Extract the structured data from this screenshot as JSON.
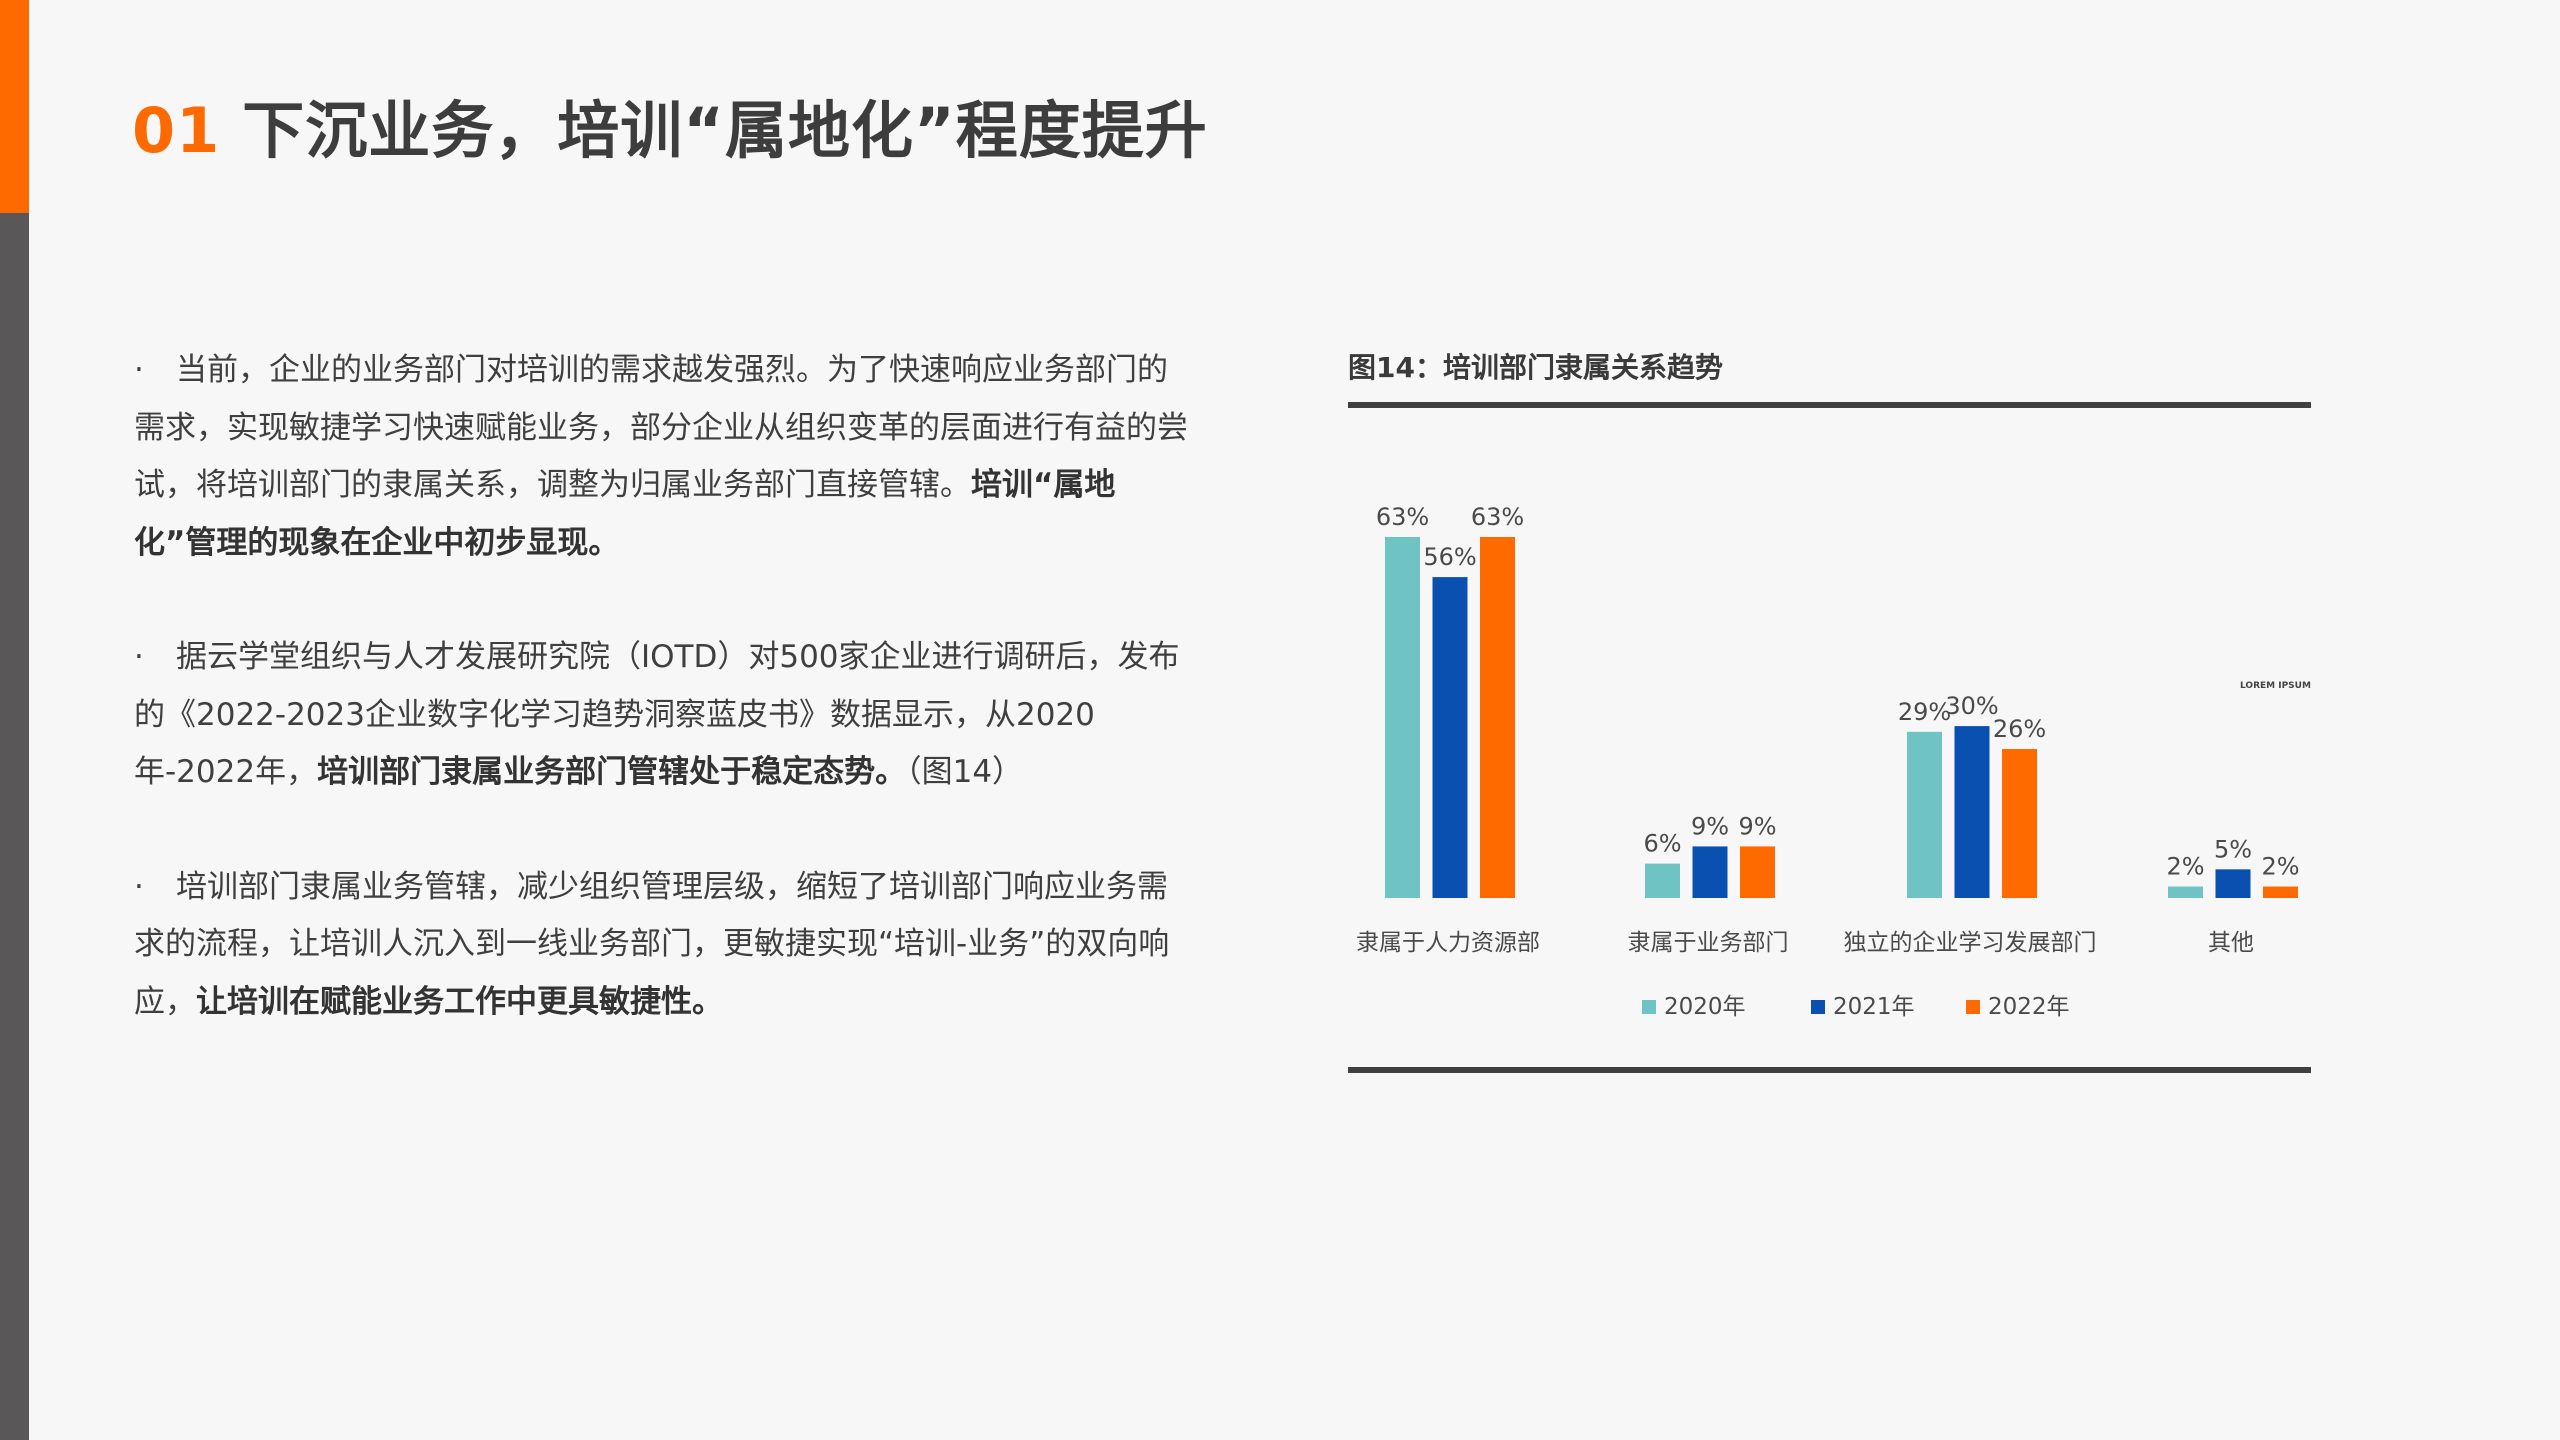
{
  "header": {
    "section_number": "01",
    "title": "下沉业务，培训“属地化”程度提升"
  },
  "paragraphs": [
    {
      "bullet": "·",
      "text": "当前，企业的业务部门对培训的需求越发强烈。为了快速响应业务部门的需求，实现敏捷学习快速赋能业务，部分企业从组织变革的层面进行有益的尝试，将培训部门的隶属关系，调整为归属业务部门直接管辖。",
      "bold": "培训“属地化”管理的现象在企业中初步显现。",
      "tail": ""
    },
    {
      "bullet": "·",
      "text": "据云学堂组织与人才发展研究院（IOTD）对500家企业进行调研后，发布的《2022-2023企业数字化学习趋势洞察蓝皮书》数据显示，从2020年-2022年，",
      "bold": "培训部门隶属业务部门管辖处于稳定态势。",
      "tail": "（图14）"
    },
    {
      "bullet": "·",
      "text": "培训部门隶属业务管辖，减少组织管理层级，缩短了培训部门响应业务需求的流程，让培训人沉入到一线业务部门，更敏捷实现“培训-业务”的双向响应，",
      "bold": "让培训在赋能业务工作中更具敏捷性。",
      "tail": ""
    }
  ],
  "chart_title": "图14：培训部门隶属关系趋势",
  "lorem": "LOREM IPSUM",
  "colors": {
    "accent": "#ff6a00",
    "sidebar": "#595757",
    "rule": "#404040"
  },
  "chart_data": {
    "type": "bar",
    "title": "图14：培训部门隶属关系趋势",
    "categories": [
      "隶属于人力资源部",
      "隶属于业务部门",
      "独立的企业学习发展部门",
      "其他"
    ],
    "series": [
      {
        "name": "2020年",
        "color": "#6fc3c3",
        "values": [
          63,
          6,
          29,
          2
        ]
      },
      {
        "name": "2021年",
        "color": "#0a50b0",
        "values": [
          56,
          9,
          30,
          5
        ]
      },
      {
        "name": "2022年",
        "color": "#ff6a00",
        "values": [
          63,
          9,
          26,
          2
        ]
      }
    ],
    "value_suffix": "%",
    "ylim": [
      0,
      63
    ],
    "grid": false,
    "legend": "bottom"
  }
}
